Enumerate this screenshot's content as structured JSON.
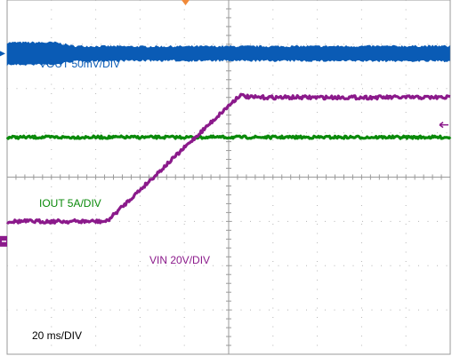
{
  "chart_data": {
    "type": "line",
    "title": "",
    "grid": true,
    "timebase_label": "20 ms/DIV",
    "x_divisions": 10,
    "y_divisions": 8,
    "x_unit": "ms",
    "x_per_div": 20,
    "series": [
      {
        "name": "VOUT 50mV/DIV",
        "color": "#0a5bb5",
        "style": "noise-band",
        "description_values": {
          "center_div": [
            [
              0,
              1.21
            ],
            [
              100,
              1.21
            ],
            [
              200,
              1.21
            ]
          ],
          "band_half_div": [
            [
              0,
              0.22
            ],
            [
              22,
              0.22
            ],
            [
              30,
              0.14
            ],
            [
              60,
              0.13
            ],
            [
              200,
              0.14
            ]
          ]
        }
      },
      {
        "name": "IOUT 5A/DIV",
        "color": "#0a8a0a",
        "style": "line",
        "points_div": [
          [
            0,
            3.1
          ],
          [
            200,
            3.1
          ]
        ]
      },
      {
        "name": "VIN 20V/DIV",
        "color": "#8b1a8b",
        "style": "line",
        "points_div": [
          [
            0,
            5.0
          ],
          [
            45,
            5.0
          ],
          [
            105,
            2.15
          ],
          [
            110,
            2.2
          ],
          [
            200,
            2.2
          ]
        ]
      }
    ],
    "labels": [
      {
        "text": "VOUT 50mV/DIV",
        "color": "#0a5bb5"
      },
      {
        "text": "IOUT 5A/DIV",
        "color": "#0a8a0a"
      },
      {
        "text": "VIN 20V/DIV",
        "color": "#8b1a8b"
      },
      {
        "text": "20 ms/DIV",
        "color": "#000000"
      }
    ]
  }
}
